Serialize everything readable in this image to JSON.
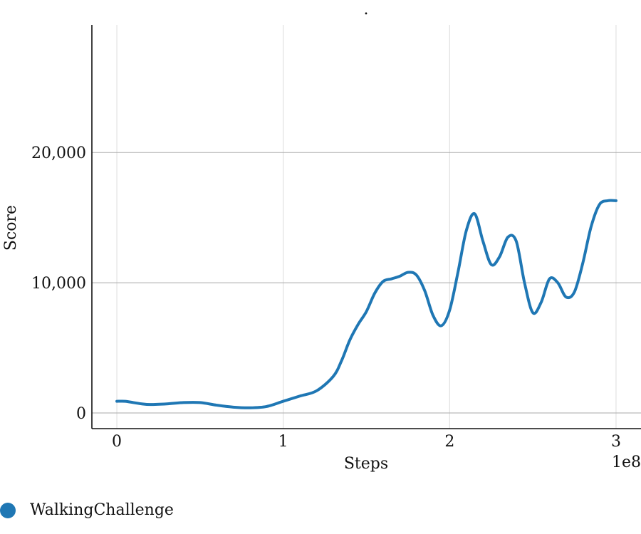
{
  "chart_data": {
    "type": "line",
    "title": ".",
    "xlabel": "Steps",
    "ylabel": "Score",
    "x_offset_label": "1e8",
    "xlim": [
      -0.15,
      3.15
    ],
    "ylim": [
      -1200,
      29800
    ],
    "x_ticks": [
      0,
      1,
      2,
      3
    ],
    "x_tick_labels": [
      "0",
      "1",
      "2",
      "3"
    ],
    "y_ticks": [
      0,
      10000,
      20000
    ],
    "y_tick_labels": [
      "0",
      "10,000",
      "20,000"
    ],
    "grid": true,
    "legend_position": "bottom-left",
    "series": [
      {
        "name": "WalkingChallenge",
        "color": "#1f77b4",
        "x": [
          0,
          0.05,
          0.1,
          0.15,
          0.2,
          0.3,
          0.4,
          0.5,
          0.6,
          0.7,
          0.8,
          0.9,
          1.0,
          1.1,
          1.2,
          1.3,
          1.35,
          1.4,
          1.45,
          1.5,
          1.55,
          1.6,
          1.65,
          1.7,
          1.75,
          1.8,
          1.85,
          1.9,
          1.95,
          2.0,
          2.05,
          2.1,
          2.15,
          2.2,
          2.25,
          2.3,
          2.35,
          2.4,
          2.45,
          2.5,
          2.55,
          2.6,
          2.65,
          2.7,
          2.75,
          2.8,
          2.85,
          2.9,
          2.95,
          3.0
        ],
        "y": [
          900,
          900,
          800,
          700,
          650,
          700,
          800,
          800,
          600,
          450,
          400,
          500,
          900,
          1300,
          1700,
          2800,
          4000,
          5600,
          6800,
          7800,
          9200,
          10100,
          10300,
          10500,
          10800,
          10600,
          9400,
          7500,
          6700,
          7900,
          10800,
          14000,
          15300,
          13200,
          11400,
          12000,
          13500,
          13200,
          10000,
          7700,
          8500,
          10300,
          10000,
          8900,
          9300,
          11500,
          14300,
          16000,
          16300,
          16300
        ]
      }
    ]
  }
}
